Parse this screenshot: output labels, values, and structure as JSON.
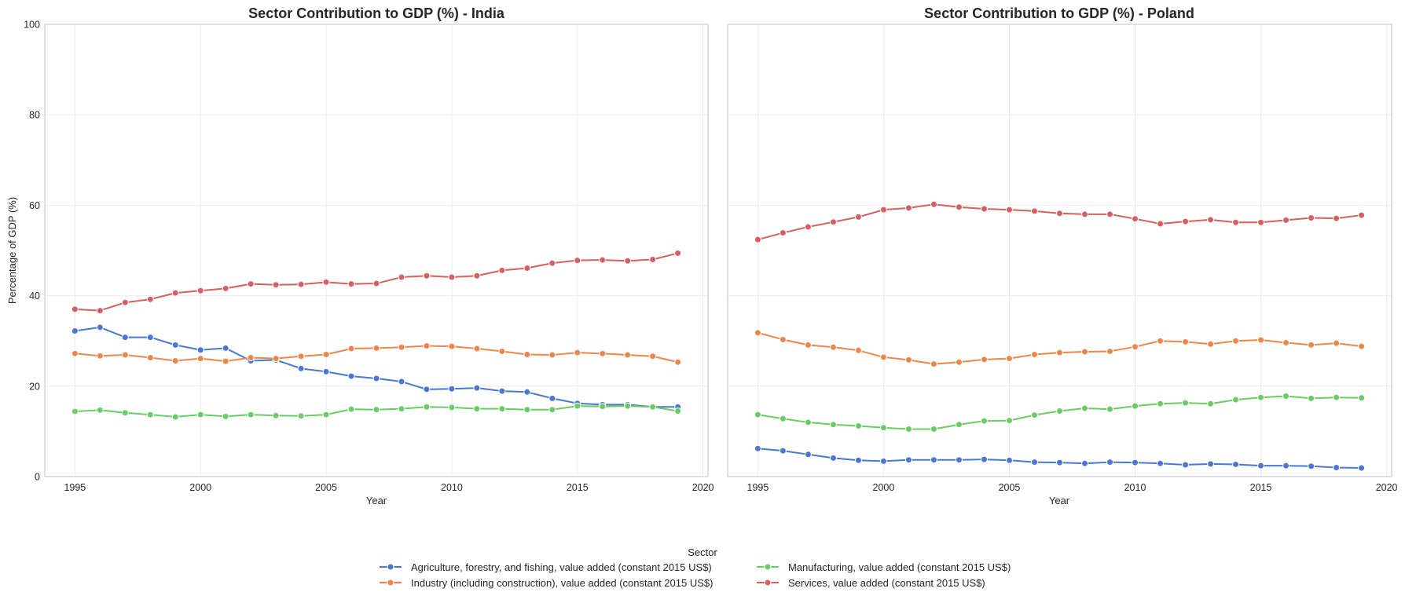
{
  "chart_data": [
    {
      "type": "line",
      "title": "Sector Contribution to GDP (%) - India",
      "xlabel": "Year",
      "ylabel": "Percentage of GDP (%)",
      "xlim": [
        1993.8,
        2020.2
      ],
      "ylim": [
        0,
        100
      ],
      "xticks": [
        1995,
        2000,
        2005,
        2010,
        2015,
        2020
      ],
      "yticks": [
        0,
        20,
        40,
        60,
        80,
        100
      ],
      "grid": true,
      "x": [
        1995,
        1996,
        1997,
        1998,
        1999,
        2000,
        2001,
        2002,
        2003,
        2004,
        2005,
        2006,
        2007,
        2008,
        2009,
        2010,
        2011,
        2012,
        2013,
        2014,
        2015,
        2016,
        2017,
        2018,
        2019
      ],
      "series": [
        {
          "name": "Agriculture, forestry, and fishing, value added (constant 2015 US$)",
          "color": "#4878d0",
          "values": [
            32.2,
            33.0,
            30.8,
            30.8,
            29.1,
            28.0,
            28.4,
            25.6,
            25.8,
            23.9,
            23.2,
            22.2,
            21.7,
            21.0,
            19.3,
            19.4,
            19.6,
            18.9,
            18.7,
            17.3,
            16.2,
            15.9,
            15.9,
            15.4,
            15.4
          ]
        },
        {
          "name": "Industry (including construction), value added (constant 2015 US$)",
          "color": "#ee854a",
          "values": [
            27.2,
            26.7,
            26.9,
            26.3,
            25.6,
            26.1,
            25.5,
            26.3,
            26.1,
            26.6,
            27.0,
            28.3,
            28.4,
            28.6,
            28.9,
            28.8,
            28.3,
            27.7,
            27.0,
            26.9,
            27.4,
            27.2,
            26.9,
            26.6,
            25.3
          ]
        },
        {
          "name": "Manufacturing, value added (constant 2015 US$)",
          "color": "#6acc64",
          "values": [
            14.4,
            14.7,
            14.1,
            13.7,
            13.2,
            13.7,
            13.3,
            13.7,
            13.5,
            13.4,
            13.7,
            14.9,
            14.8,
            15.0,
            15.4,
            15.3,
            15.0,
            15.0,
            14.8,
            14.8,
            15.6,
            15.5,
            15.6,
            15.4,
            14.5
          ]
        },
        {
          "name": "Services, value added (constant 2015 US$)",
          "color": "#d65f5f",
          "values": [
            37.0,
            36.7,
            38.5,
            39.2,
            40.6,
            41.1,
            41.6,
            42.6,
            42.4,
            42.5,
            43.0,
            42.6,
            42.7,
            44.1,
            44.4,
            44.1,
            44.4,
            45.6,
            46.1,
            47.2,
            47.8,
            47.9,
            47.7,
            48.0,
            49.4
          ]
        }
      ]
    },
    {
      "type": "line",
      "title": "Sector Contribution to GDP (%) - Poland",
      "xlabel": "Year",
      "ylabel": "",
      "xlim": [
        1993.8,
        2020.2
      ],
      "ylim": [
        0,
        100
      ],
      "xticks": [
        1995,
        2000,
        2005,
        2010,
        2015,
        2020
      ],
      "yticks": [
        0,
        20,
        40,
        60,
        80,
        100
      ],
      "grid": true,
      "x": [
        1995,
        1996,
        1997,
        1998,
        1999,
        2000,
        2001,
        2002,
        2003,
        2004,
        2005,
        2006,
        2007,
        2008,
        2009,
        2010,
        2011,
        2012,
        2013,
        2014,
        2015,
        2016,
        2017,
        2018,
        2019
      ],
      "series": [
        {
          "name": "Agriculture, forestry, and fishing, value added (constant 2015 US$)",
          "color": "#4878d0",
          "values": [
            6.2,
            5.7,
            4.9,
            4.1,
            3.6,
            3.4,
            3.7,
            3.7,
            3.7,
            3.8,
            3.6,
            3.2,
            3.1,
            2.9,
            3.2,
            3.1,
            2.9,
            2.6,
            2.8,
            2.7,
            2.4,
            2.4,
            2.3,
            2.0,
            1.9
          ]
        },
        {
          "name": "Industry (including construction), value added (constant 2015 US$)",
          "color": "#ee854a",
          "values": [
            31.8,
            30.3,
            29.1,
            28.6,
            27.9,
            26.4,
            25.8,
            24.9,
            25.3,
            25.9,
            26.1,
            27.0,
            27.4,
            27.6,
            27.7,
            28.7,
            30.0,
            29.8,
            29.3,
            30.0,
            30.2,
            29.6,
            29.1,
            29.5,
            28.8
          ]
        },
        {
          "name": "Manufacturing, value added (constant 2015 US$)",
          "color": "#6acc64",
          "values": [
            13.7,
            12.8,
            12.0,
            11.5,
            11.2,
            10.8,
            10.5,
            10.5,
            11.5,
            12.3,
            12.4,
            13.6,
            14.5,
            15.1,
            14.9,
            15.6,
            16.1,
            16.3,
            16.1,
            17.0,
            17.5,
            17.8,
            17.3,
            17.5,
            17.4
          ]
        },
        {
          "name": "Services, value added (constant 2015 US$)",
          "color": "#d65f5f",
          "values": [
            52.4,
            53.9,
            55.2,
            56.3,
            57.4,
            59.0,
            59.4,
            60.2,
            59.6,
            59.2,
            59.0,
            58.7,
            58.2,
            58.0,
            58.0,
            57.0,
            55.9,
            56.4,
            56.8,
            56.2,
            56.2,
            56.7,
            57.2,
            57.1,
            57.8
          ]
        }
      ]
    }
  ],
  "legend": {
    "title": "Sector",
    "placement": "bottom-center",
    "items": [
      {
        "label": "Agriculture, forestry, and fishing, value added (constant 2015 US$)",
        "color": "#4878d0"
      },
      {
        "label": "Industry (including construction), value added (constant 2015 US$)",
        "color": "#ee854a"
      },
      {
        "label": "Manufacturing, value added (constant 2015 US$)",
        "color": "#6acc64"
      },
      {
        "label": "Services, value added (constant 2015 US$)",
        "color": "#d65f5f"
      }
    ]
  }
}
